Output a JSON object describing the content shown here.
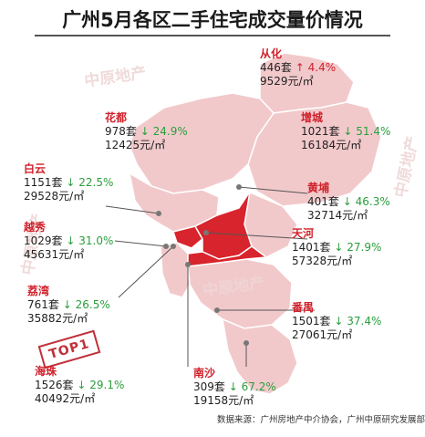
{
  "title": "广州5月各区二手住宅成交量价情况",
  "watermark": "中原地产",
  "source": "数据来源：广州房地产中介协会，广州中原研究发展部",
  "stamp": "TOP1",
  "colors": {
    "accent_red": "#d0202a",
    "down_green": "#2a9e3c",
    "map_light": "#f2c9cb",
    "map_dark": "#d8242c"
  },
  "districts": {
    "conghua": {
      "name": "从化",
      "units": "446套",
      "change": "4.4%",
      "dir": "up",
      "arrow": "↑",
      "price": "9529元/㎡"
    },
    "huadu": {
      "name": "花都",
      "units": "978套",
      "change": "24.9%",
      "dir": "down",
      "arrow": "↓",
      "price": "12425元/㎡"
    },
    "zengcheng": {
      "name": "增城",
      "units": "1021套",
      "change": "51.4%",
      "dir": "down",
      "arrow": "↓",
      "price": "16184元/㎡"
    },
    "baiyun": {
      "name": "白云",
      "units": "1151套",
      "change": "22.5%",
      "dir": "down",
      "arrow": "↓",
      "price": "29528元/㎡"
    },
    "huangpu": {
      "name": "黄埔",
      "units": "401套",
      "change": "46.3%",
      "dir": "down",
      "arrow": "↓",
      "price": "32714元/㎡"
    },
    "yuexiu": {
      "name": "越秀",
      "units": "1029套",
      "change": "31.0%",
      "dir": "down",
      "arrow": "↓",
      "price": "45631元/㎡"
    },
    "tianhe": {
      "name": "天河",
      "units": "1401套",
      "change": "27.9%",
      "dir": "down",
      "arrow": "↓",
      "price": "57328元/㎡"
    },
    "liwan": {
      "name": "荔湾",
      "units": "761套",
      "change": "26.5%",
      "dir": "down",
      "arrow": "↓",
      "price": "35882元/㎡"
    },
    "panyu": {
      "name": "番禺",
      "units": "1501套",
      "change": "37.4%",
      "dir": "down",
      "arrow": "↓",
      "price": "27061元/㎡"
    },
    "haizhu": {
      "name": "海珠",
      "units": "1526套",
      "change": "29.1%",
      "dir": "down",
      "arrow": "↓",
      "price": "40492元/㎡"
    },
    "nansha": {
      "name": "南沙",
      "units": "309套",
      "change": "67.2%",
      "dir": "down",
      "arrow": "↓",
      "price": "19158元/㎡"
    }
  }
}
